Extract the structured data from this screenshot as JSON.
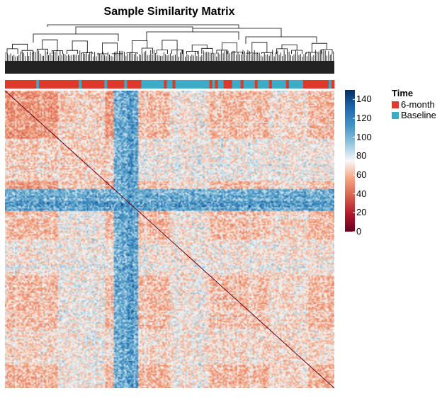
{
  "title": "Sample Similarity Matrix",
  "chart_data": {
    "type": "heatmap",
    "title": "Sample Similarity Matrix",
    "n_samples": 460,
    "value_range": [
      0,
      150
    ],
    "colorbar": {
      "ticks": [
        0,
        20,
        40,
        60,
        80,
        100,
        120,
        140
      ],
      "tick_labels": [
        "0",
        "20",
        "40",
        "60",
        "80",
        "100",
        "120",
        "140"
      ],
      "colors": [
        "#67001f",
        "#b2182b",
        "#d6604d",
        "#f4a582",
        "#f7f7f7",
        "#92c5de",
        "#4393c3",
        "#2166ac",
        "#053061"
      ]
    },
    "diagonal_color": "#67001f",
    "annotation": {
      "name": "Time",
      "levels": [
        {
          "label": "6-month",
          "color": "#dc3a2a"
        },
        {
          "label": "Baseline",
          "color": "#3fa9c8"
        }
      ]
    },
    "dendrogram": true
  }
}
